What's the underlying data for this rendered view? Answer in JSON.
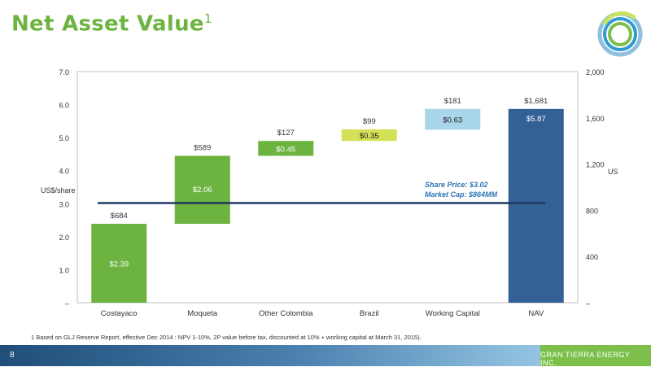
{
  "title": "Net Asset Value",
  "title_sup": "1",
  "footnote": "1  Based on GLJ Reserve Report, effective Dec 2014 : NPV 1-10%, 2P value before tax, discounted at 10%  + working capital at March 31, 2015).",
  "footer": {
    "page_number": "8",
    "company": "GRAN TIERRA ENERGY INC."
  },
  "colors": {
    "green": "#6cb33f",
    "lime": "#d4e157",
    "light_blue": "#a9d6ea",
    "navy": "#336095",
    "line": "#1f3864"
  },
  "chart_data": {
    "type": "bar",
    "subtype": "waterfall",
    "categories": [
      "Costayaco",
      "Moqueta",
      "Other Colombia",
      "Brazil",
      "Working Capital",
      "NAV"
    ],
    "starts": [
      0,
      2.39,
      4.45,
      4.9,
      5.24,
      0
    ],
    "values": [
      2.39,
      2.06,
      0.45,
      0.35,
      0.63,
      5.87
    ],
    "value_labels": [
      "$2.39",
      "$2.06",
      "$0.45",
      "$0.35",
      "$0.63",
      "$5.87"
    ],
    "top_labels": [
      "$684",
      "$589",
      "$127",
      "$99",
      "$181",
      "$1,681"
    ],
    "bar_colors": [
      "#6cb33f",
      "#6cb33f",
      "#6cb33f",
      "#d4e157",
      "#a9d6ea",
      "#336095"
    ],
    "y_left": {
      "label": "US$/share",
      "ticks": [
        "–",
        "1.0",
        "2.0",
        "3.0",
        "4.0",
        "5.0",
        "6.0",
        "7.0"
      ],
      "ylim": [
        0,
        7
      ]
    },
    "y_right": {
      "label": "US",
      "ticks": [
        "–",
        "400",
        "800",
        "1,200",
        "1,600",
        "2,000"
      ],
      "ylim": [
        0,
        2000
      ]
    },
    "share_price_line": 3.02,
    "annotations": [
      "Share Price: $3.02",
      "Market Cap: $864MM"
    ]
  }
}
